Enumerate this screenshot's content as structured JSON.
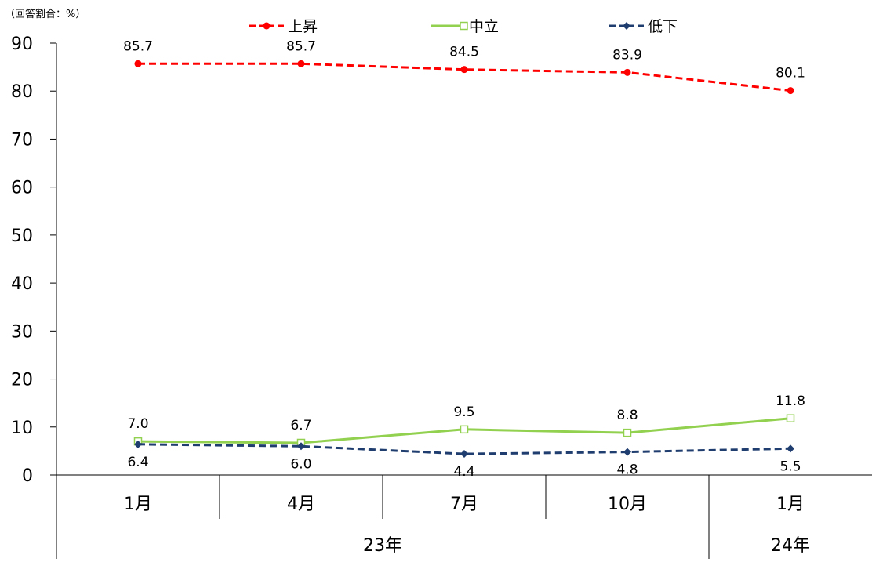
{
  "chart_data": {
    "type": "line",
    "unit_label": "（回答割合：%）",
    "categories": [
      "1月",
      "4月",
      "7月",
      "10月",
      "1月"
    ],
    "year_groups": [
      {
        "label": "23年",
        "count": 4
      },
      {
        "label": "24年",
        "count": 1
      }
    ],
    "ylim": [
      0,
      90
    ],
    "yticks": [
      0,
      10,
      20,
      30,
      40,
      50,
      60,
      70,
      80,
      90
    ],
    "grid": false,
    "legend_position": "top",
    "series": [
      {
        "name": "上昇",
        "values": [
          85.7,
          85.7,
          84.5,
          83.9,
          80.1
        ],
        "labels": [
          "85.7",
          "85.7",
          "84.5",
          "83.9",
          "80.1"
        ],
        "color": "#ff0000",
        "line_style": "dashed",
        "marker": "circle",
        "label_position": "above"
      },
      {
        "name": "中立",
        "values": [
          7.0,
          6.7,
          9.5,
          8.8,
          11.8
        ],
        "labels": [
          "7.0",
          "6.7",
          "9.5",
          "8.8",
          "11.8"
        ],
        "color": "#92d050",
        "line_style": "solid",
        "marker": "square-open",
        "label_position": "above"
      },
      {
        "name": "低下",
        "values": [
          6.4,
          6.0,
          4.4,
          4.8,
          5.5
        ],
        "labels": [
          "6.4",
          "6.0",
          "4.4",
          "4.8",
          "5.5"
        ],
        "color": "#1f3d6e",
        "line_style": "dashed",
        "marker": "diamond",
        "label_position": "below"
      }
    ]
  }
}
